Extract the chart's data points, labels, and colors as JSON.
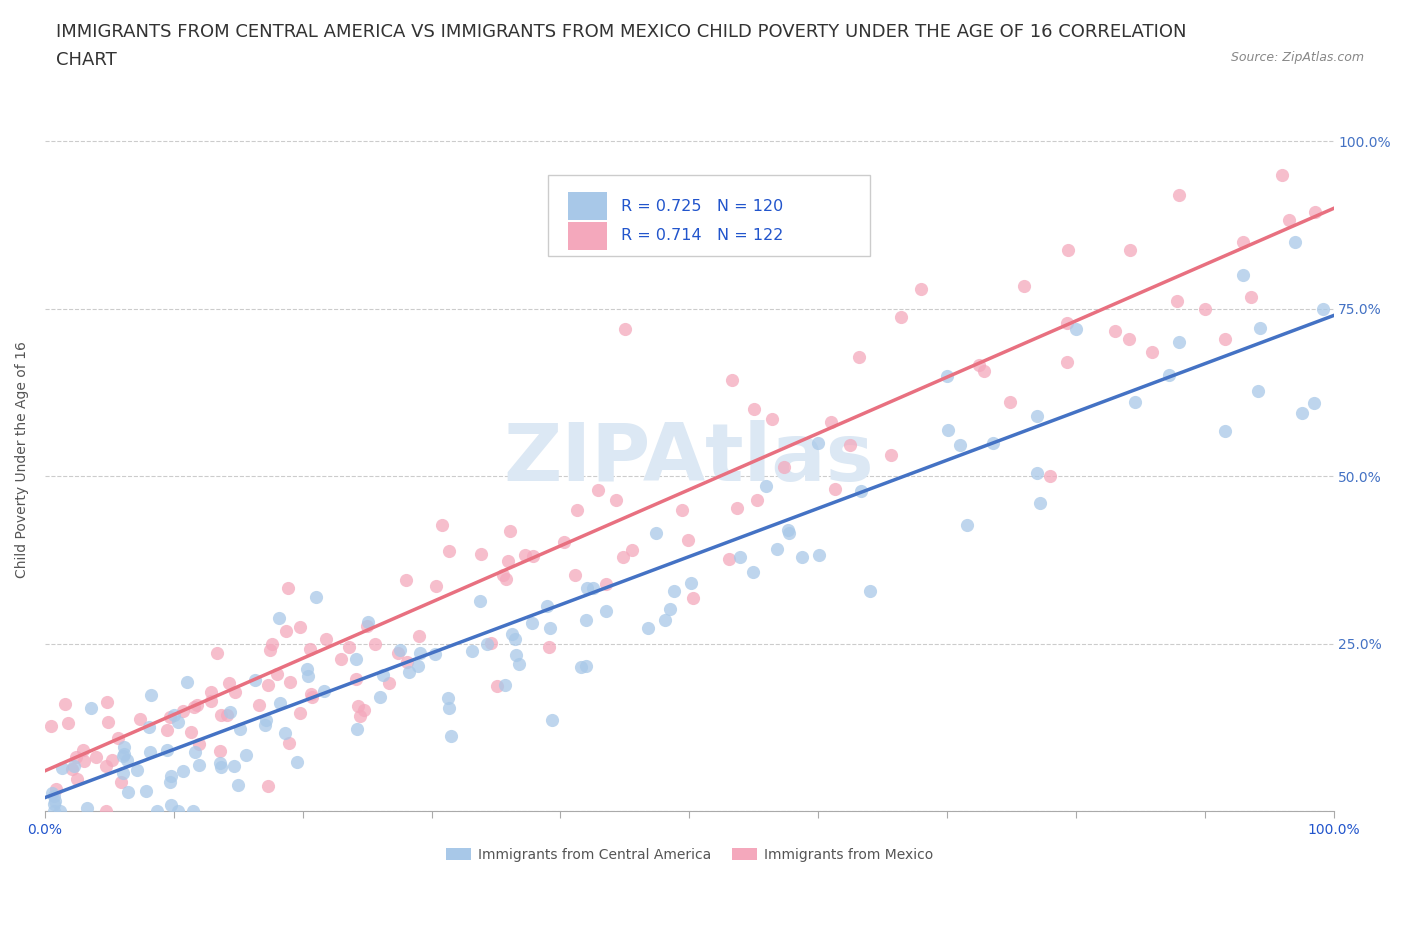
{
  "title_line1": "IMMIGRANTS FROM CENTRAL AMERICA VS IMMIGRANTS FROM MEXICO CHILD POVERTY UNDER THE AGE OF 16 CORRELATION",
  "title_line2": "CHART",
  "source": "Source: ZipAtlas.com",
  "ylabel": "Child Poverty Under the Age of 16",
  "xlim": [
    0.0,
    1.0
  ],
  "ylim": [
    0.0,
    1.05
  ],
  "series1_label": "Immigrants from Central America",
  "series2_label": "Immigrants from Mexico",
  "series1_color": "#a8c8e8",
  "series2_color": "#f4a8bc",
  "series1_line_color": "#4472c4",
  "series2_line_color": "#e87080",
  "series1_R": "0.725",
  "series1_N": "120",
  "series2_R": "0.714",
  "series2_N": "122",
  "watermark": "ZIPAtlas",
  "watermark_color": "#dce8f4",
  "legend_text_color": "#2255cc",
  "background_color": "#ffffff",
  "grid_color": "#cccccc",
  "title_fontsize": 13,
  "axis_label_fontsize": 10,
  "tick_fontsize": 10,
  "right_ytick_color": "#4472c4"
}
